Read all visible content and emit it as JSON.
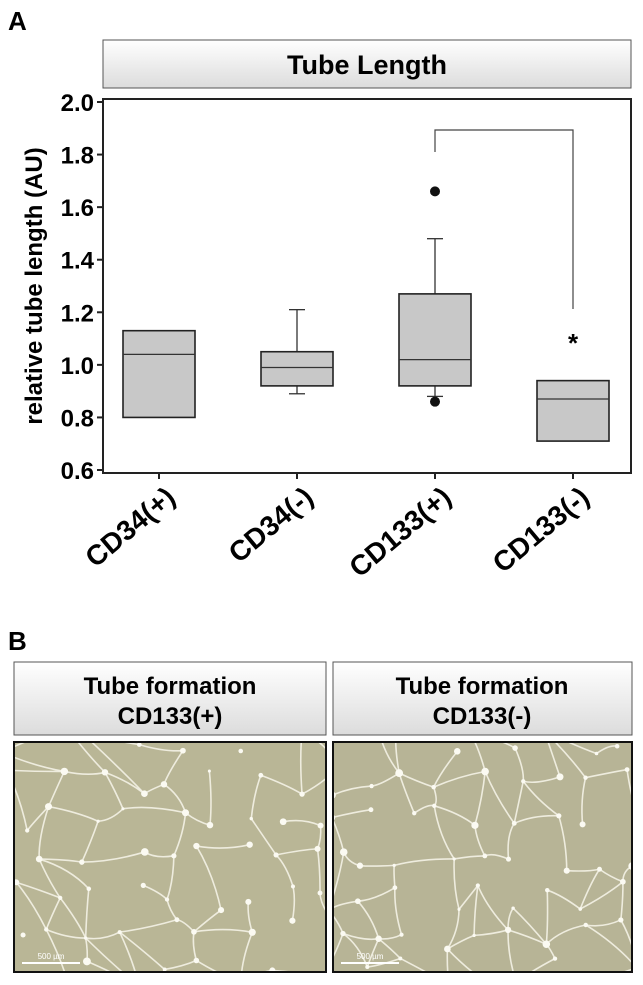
{
  "panel_a": {
    "label": "A"
  },
  "chart_data": {
    "type": "box",
    "title": "Tube Length",
    "y_label": "relative tube length (AU)",
    "categories": [
      "CD34(+)",
      "CD34(-)",
      "CD133(+)",
      "CD133(-)"
    ],
    "color": "#c8c8c8",
    "boxes": [
      {
        "q1": 0.8,
        "median": 1.04,
        "q3": 1.13
      },
      {
        "whisker_low": 0.89,
        "q1": 0.92,
        "median": 0.99,
        "q3": 1.05,
        "whisker_high": 1.21
      },
      {
        "whisker_low": 0.88,
        "q1": 0.92,
        "median": 1.02,
        "q3": 1.27,
        "whisker_high": 1.48,
        "outliers": [
          1.66,
          0.86
        ]
      },
      {
        "q1": 0.71,
        "median": 0.87,
        "q3": 0.94
      }
    ],
    "significance": {
      "text": "*"
    },
    "ylim": [
      0.6,
      2.0
    ],
    "yticks": [
      0.6,
      0.8,
      {
        "value": 1,
        "label": "1.0"
      },
      1.2,
      1.4,
      1.6,
      1.8,
      {
        "value": 2,
        "label": "2.0"
      }
    ]
  },
  "panel_b": {
    "label": "B",
    "images": [
      {
        "title": [
          "Tube formation",
          "CD133(+)"
        ],
        "scale_bar": "500 µm"
      },
      {
        "title": [
          "Tube formation",
          "CD133(-)"
        ],
        "scale_bar": "500 µm"
      }
    ]
  }
}
